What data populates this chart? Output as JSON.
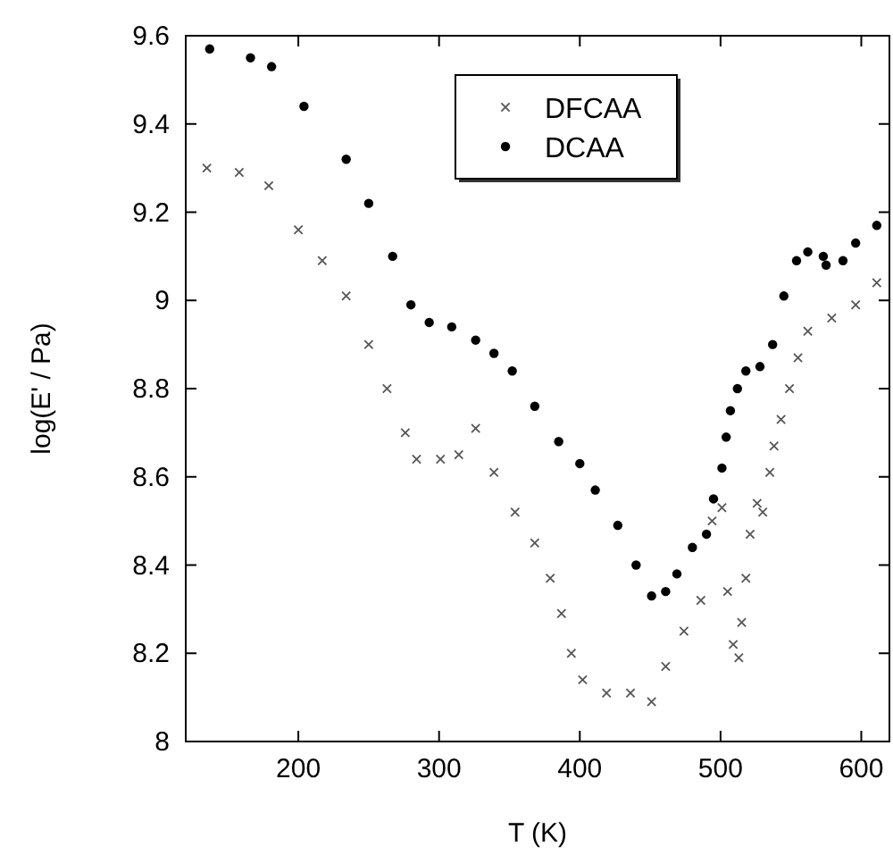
{
  "chart_data": {
    "type": "scatter",
    "xlabel": "T (K)",
    "ylabel": "log(E' / Pa)",
    "xlim": [
      120,
      620
    ],
    "ylim": [
      8,
      9.6
    ],
    "xticks": [
      200,
      300,
      400,
      500,
      600
    ],
    "yticks": [
      8,
      8.2,
      8.4,
      8.6,
      8.8,
      9,
      9.2,
      9.4,
      9.6
    ],
    "legend": "top",
    "grid": false,
    "series": [
      {
        "name": "DFCAA",
        "color": "#555555",
        "marker": "cross",
        "x": [
          135,
          158,
          179,
          200,
          217,
          234,
          250,
          263,
          276,
          284,
          301,
          314,
          326,
          339,
          354,
          368,
          379,
          387,
          394,
          402,
          419,
          436,
          451,
          461,
          474,
          486,
          494,
          501,
          505,
          509,
          513,
          515,
          518,
          521,
          526,
          530,
          535,
          538,
          543,
          549,
          555,
          562,
          579,
          596,
          611
        ],
        "values": [
          9.3,
          9.29,
          9.26,
          9.16,
          9.09,
          9.01,
          8.9,
          8.8,
          8.7,
          8.64,
          8.64,
          8.65,
          8.71,
          8.61,
          8.52,
          8.45,
          8.37,
          8.29,
          8.2,
          8.14,
          8.11,
          8.11,
          8.09,
          8.17,
          8.25,
          8.32,
          8.5,
          8.53,
          8.34,
          8.22,
          8.19,
          8.27,
          8.37,
          8.47,
          8.54,
          8.52,
          8.61,
          8.67,
          8.73,
          8.8,
          8.87,
          8.93,
          8.96,
          8.99,
          9.04
        ]
      },
      {
        "name": "DCAA",
        "color": "#000000",
        "marker": "circle",
        "x": [
          137,
          166,
          181,
          204,
          234,
          250,
          267,
          280,
          293,
          309,
          326,
          339,
          352,
          368,
          385,
          400,
          411,
          427,
          440,
          451,
          461,
          469,
          480,
          490,
          495,
          501,
          504,
          507,
          512,
          518,
          528,
          537,
          545,
          554,
          562,
          573,
          575,
          587,
          596,
          611
        ],
        "values": [
          9.57,
          9.55,
          9.53,
          9.44,
          9.32,
          9.22,
          9.1,
          8.99,
          8.95,
          8.94,
          8.91,
          8.88,
          8.84,
          8.76,
          8.68,
          8.63,
          8.57,
          8.49,
          8.4,
          8.33,
          8.34,
          8.38,
          8.44,
          8.47,
          8.55,
          8.62,
          8.69,
          8.75,
          8.8,
          8.84,
          8.85,
          8.9,
          9.01,
          9.09,
          9.11,
          9.1,
          9.08,
          9.09,
          9.13,
          9.17
        ]
      }
    ]
  }
}
